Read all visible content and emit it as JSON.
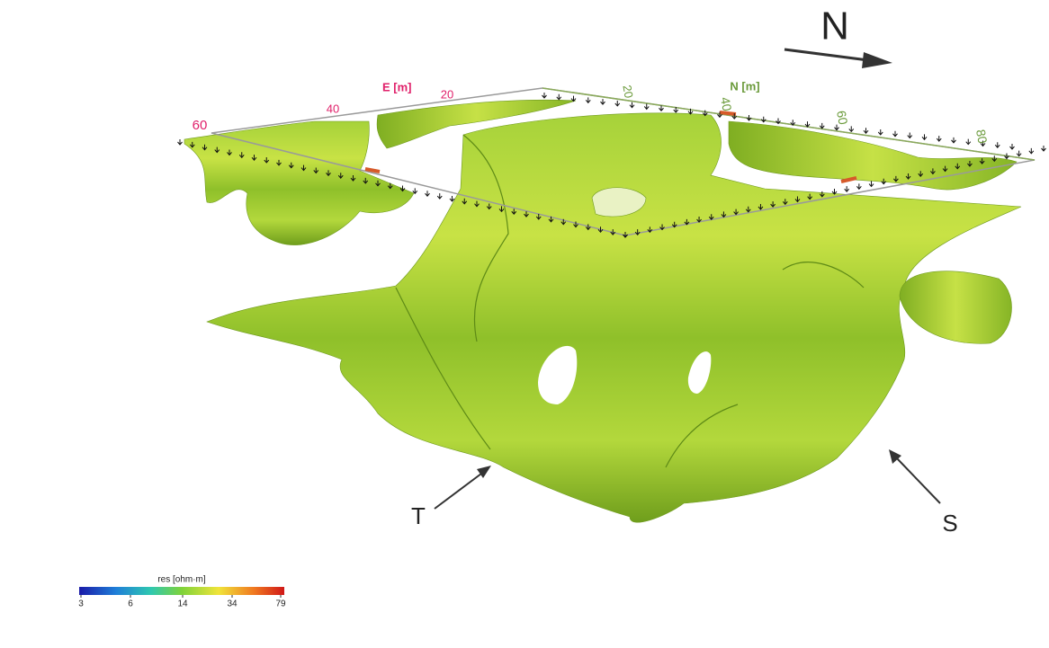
{
  "compass": {
    "label": "N"
  },
  "axes": {
    "e": {
      "title": "E [m]",
      "ticks": [
        "60",
        "40",
        "20"
      ]
    },
    "n": {
      "title": "N [m]",
      "ticks": [
        "20",
        "40",
        "60",
        "80"
      ]
    }
  },
  "annotations": [
    "T",
    "S"
  ],
  "colorbar": {
    "title": "res [ohm·m]",
    "ticks": [
      "3",
      "6",
      "14",
      "34",
      "79"
    ]
  }
}
